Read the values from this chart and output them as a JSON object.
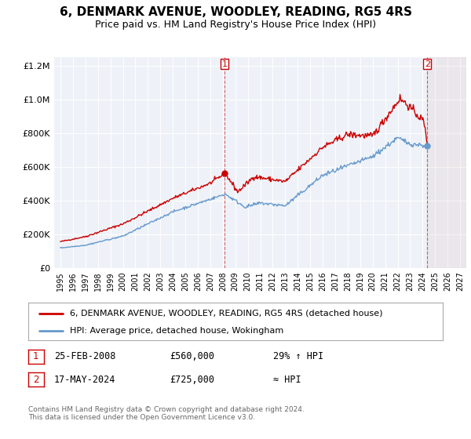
{
  "title": "6, DENMARK AVENUE, WOODLEY, READING, RG5 4RS",
  "subtitle": "Price paid vs. HM Land Registry's House Price Index (HPI)",
  "title_fontsize": 11,
  "subtitle_fontsize": 9,
  "red_line_color": "#cc0000",
  "blue_line_color": "#6699cc",
  "plot_bg_color": "#eef2f8",
  "marker1_date": 2008.15,
  "marker1_price": 560000,
  "marker2_date": 2024.37,
  "marker2_price": 725000,
  "marker2_hpi": 725000,
  "ylim": [
    0,
    1250000
  ],
  "xlim": [
    1994.5,
    2027.5
  ],
  "legend_line1": "6, DENMARK AVENUE, WOODLEY, READING, RG5 4RS (detached house)",
  "legend_line2": "HPI: Average price, detached house, Wokingham",
  "annotation1_date": "25-FEB-2008",
  "annotation1_price": "£560,000",
  "annotation1_note": "29% ↑ HPI",
  "annotation2_date": "17-MAY-2024",
  "annotation2_price": "£725,000",
  "annotation2_note": "≈ HPI",
  "footer": "Contains HM Land Registry data © Crown copyright and database right 2024.\nThis data is licensed under the Open Government Licence v3.0."
}
